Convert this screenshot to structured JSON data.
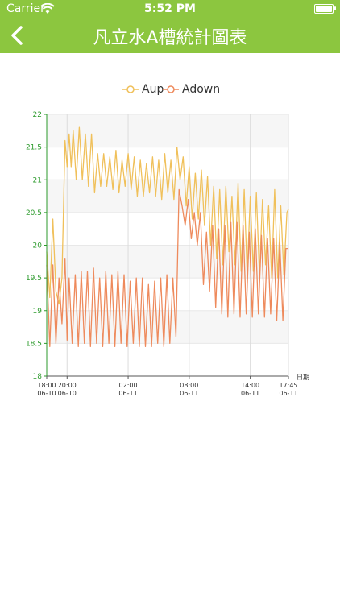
{
  "status_bar": {
    "carrier": "Carrier",
    "time": "5:52 PM"
  },
  "header": {
    "title": "凡立水A槽統計圖表",
    "back_icon": "chevron-left-icon"
  },
  "colors": {
    "header_bg": "#8cc63f",
    "aup": "#f0c05a",
    "adown": "#ee8a5c",
    "yaxis": "#2b9a2b"
  },
  "chart_data": {
    "type": "line",
    "title": "",
    "xlabel": "日期",
    "ylabel": "",
    "ylim": [
      18,
      22
    ],
    "yticks": [
      "22",
      "21.5",
      "21",
      "20.5",
      "20",
      "19.5",
      "19",
      "18.5",
      "18"
    ],
    "xticks": [
      {
        "t": 0,
        "line1": "18:00",
        "line2": "06-10"
      },
      {
        "t": 2,
        "line1": "20:00",
        "line2": "06-10"
      },
      {
        "t": 8,
        "line1": "02:00",
        "line2": "06-11"
      },
      {
        "t": 14,
        "line1": "08:00",
        "line2": "06-11"
      },
      {
        "t": 20,
        "line1": "14:00",
        "line2": "06-11"
      },
      {
        "t": 23.75,
        "line1": "17:45",
        "line2": "06-11"
      }
    ],
    "xrange_hours": [
      0,
      23.75
    ],
    "grid": true,
    "legend": "top-center",
    "series": [
      {
        "name": "Aup",
        "color": "#f0c05a",
        "t": [
          0,
          0.3,
          0.6,
          0.9,
          1.2,
          1.5,
          1.8,
          2.0,
          2.2,
          2.4,
          2.6,
          2.9,
          3.2,
          3.5,
          3.8,
          4.1,
          4.4,
          4.7,
          5.0,
          5.3,
          5.6,
          5.9,
          6.2,
          6.5,
          6.8,
          7.1,
          7.4,
          7.7,
          8.0,
          8.3,
          8.6,
          8.9,
          9.2,
          9.5,
          9.8,
          10.1,
          10.4,
          10.7,
          11.0,
          11.3,
          11.6,
          11.9,
          12.2,
          12.5,
          12.8,
          13.1,
          13.4,
          13.7,
          14.0,
          14.3,
          14.6,
          14.9,
          15.2,
          15.5,
          15.8,
          16.1,
          16.4,
          16.7,
          17.0,
          17.3,
          17.6,
          17.9,
          18.2,
          18.5,
          18.8,
          19.1,
          19.4,
          19.7,
          20.0,
          20.3,
          20.6,
          20.9,
          21.2,
          21.5,
          21.8,
          22.1,
          22.4,
          22.7,
          23.0,
          23.3,
          23.6,
          23.75
        ],
        "values": [
          19.9,
          19.2,
          20.4,
          19.3,
          19.1,
          19.5,
          21.6,
          21.2,
          21.7,
          21.2,
          21.75,
          21.0,
          21.8,
          21.0,
          21.7,
          20.9,
          21.7,
          20.8,
          21.4,
          20.9,
          21.4,
          20.9,
          21.35,
          20.85,
          21.45,
          20.8,
          21.3,
          20.9,
          21.4,
          20.85,
          21.35,
          20.75,
          21.3,
          20.75,
          21.25,
          20.8,
          21.35,
          20.75,
          21.3,
          20.7,
          21.4,
          20.8,
          21.3,
          20.7,
          21.5,
          21.0,
          21.35,
          20.6,
          21.2,
          20.4,
          21.1,
          20.4,
          21.15,
          20.3,
          21.05,
          20.0,
          20.9,
          19.8,
          20.85,
          19.7,
          20.9,
          19.9,
          20.75,
          19.7,
          20.95,
          19.6,
          20.85,
          19.55,
          20.75,
          19.6,
          20.8,
          19.55,
          20.7,
          19.7,
          20.6,
          19.5,
          20.85,
          19.5,
          20.6,
          19.55,
          20.5,
          20.55
        ]
      },
      {
        "name": "Adown",
        "color": "#ee8a5c",
        "t": [
          0,
          0.3,
          0.6,
          0.9,
          1.2,
          1.5,
          1.8,
          2.0,
          2.2,
          2.5,
          2.8,
          3.1,
          3.4,
          3.7,
          4.0,
          4.3,
          4.6,
          4.9,
          5.2,
          5.5,
          5.8,
          6.1,
          6.4,
          6.7,
          7.0,
          7.3,
          7.6,
          7.9,
          8.2,
          8.5,
          8.8,
          9.1,
          9.4,
          9.7,
          10.0,
          10.3,
          10.6,
          10.9,
          11.2,
          11.5,
          11.8,
          12.1,
          12.4,
          12.7,
          13.0,
          13.3,
          13.6,
          13.9,
          14.2,
          14.5,
          14.8,
          15.1,
          15.4,
          15.7,
          16.0,
          16.3,
          16.6,
          16.9,
          17.2,
          17.5,
          17.8,
          18.1,
          18.4,
          18.7,
          19.0,
          19.3,
          19.6,
          19.9,
          20.2,
          20.5,
          20.8,
          21.1,
          21.4,
          21.7,
          22.0,
          22.3,
          22.6,
          22.9,
          23.2,
          23.5,
          23.75
        ],
        "values": [
          19.7,
          18.45,
          19.7,
          18.5,
          19.5,
          18.8,
          19.8,
          18.55,
          19.5,
          18.5,
          19.55,
          18.45,
          19.6,
          18.5,
          19.6,
          18.45,
          19.65,
          18.5,
          19.5,
          18.45,
          19.6,
          18.5,
          19.55,
          18.45,
          19.6,
          18.5,
          19.55,
          18.45,
          19.45,
          18.5,
          19.5,
          18.45,
          19.5,
          18.45,
          19.4,
          18.45,
          19.45,
          18.5,
          19.5,
          18.45,
          19.55,
          18.5,
          19.5,
          18.6,
          20.85,
          20.6,
          20.3,
          20.7,
          20.1,
          20.5,
          20.0,
          20.5,
          19.4,
          20.2,
          19.3,
          20.3,
          19.05,
          20.25,
          18.95,
          20.3,
          18.9,
          20.35,
          18.95,
          20.35,
          18.9,
          20.3,
          18.95,
          20.2,
          18.9,
          20.25,
          18.95,
          20.15,
          18.9,
          20.1,
          18.95,
          20.1,
          18.85,
          20.05,
          18.85,
          19.95,
          19.95
        ]
      }
    ]
  }
}
